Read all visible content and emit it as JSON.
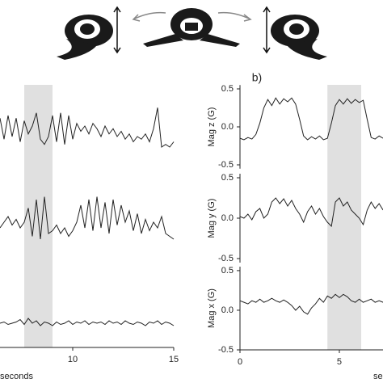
{
  "panel_label": "b)",
  "chart_data": [
    {
      "type": "line",
      "xlim": [
        6.4,
        15
      ],
      "ylim": [
        -1,
        1
      ],
      "highlight": [
        7.6,
        9.0
      ],
      "x": [
        6.4,
        6.6,
        6.8,
        7.0,
        7.2,
        7.4,
        7.6,
        7.8,
        8.0,
        8.2,
        8.4,
        8.6,
        8.8,
        9.0,
        9.2,
        9.4,
        9.6,
        9.8,
        10.0,
        10.2,
        10.4,
        10.6,
        10.8,
        11.0,
        11.2,
        11.4,
        11.6,
        11.8,
        12.0,
        12.2,
        12.4,
        12.6,
        12.8,
        13.0,
        13.2,
        13.4,
        13.6,
        13.8,
        14.0,
        14.2,
        14.4,
        14.6,
        14.8,
        15.0
      ],
      "series": [
        {
          "color": "#222222",
          "values": [
            0.5,
            -0.3,
            0.6,
            -0.2,
            0.5,
            -0.4,
            0.4,
            -0.1,
            0.2,
            0.7,
            -0.3,
            -0.5,
            -0.2,
            0.6,
            -0.4,
            0.7,
            -0.5,
            0.6,
            -0.3,
            0.3,
            0.0,
            0.2,
            -0.1,
            0.3,
            0.1,
            -0.2,
            0.2,
            -0.1,
            0.1,
            -0.2,
            0.0,
            -0.3,
            -0.1,
            -0.4,
            -0.2,
            -0.3,
            -0.1,
            -0.4,
            0.1,
            0.9,
            -0.6,
            -0.5,
            -0.6,
            -0.4
          ]
        }
      ]
    },
    {
      "type": "line",
      "xlim": [
        6.4,
        15
      ],
      "ylim": [
        -1,
        1
      ],
      "x": [
        6.4,
        6.6,
        6.8,
        7.0,
        7.2,
        7.4,
        7.6,
        7.8,
        8.0,
        8.2,
        8.4,
        8.6,
        8.8,
        9.0,
        9.2,
        9.4,
        9.6,
        9.8,
        10.0,
        10.2,
        10.4,
        10.6,
        10.8,
        11.0,
        11.2,
        11.4,
        11.6,
        11.8,
        12.0,
        12.2,
        12.4,
        12.6,
        12.8,
        13.0,
        13.2,
        13.4,
        13.6,
        13.8,
        14.0,
        14.2,
        14.4,
        14.6,
        14.8,
        15.0
      ],
      "series": [
        {
          "color": "#222222",
          "values": [
            -0.2,
            0.0,
            0.2,
            -0.1,
            0.1,
            -0.2,
            0.0,
            0.5,
            -0.5,
            0.8,
            -0.6,
            0.9,
            -0.4,
            -0.3,
            -0.1,
            -0.4,
            -0.2,
            -0.5,
            -0.3,
            0.0,
            0.6,
            -0.2,
            0.8,
            -0.3,
            0.9,
            -0.2,
            0.7,
            -0.4,
            0.8,
            -0.1,
            0.6,
            0.0,
            0.4,
            -0.3,
            0.3,
            -0.4,
            0.1,
            -0.3,
            0.0,
            -0.2,
            0.2,
            -0.4,
            -0.5,
            -0.6
          ]
        }
      ]
    },
    {
      "type": "line",
      "xlim": [
        6.4,
        15
      ],
      "ylim": [
        -2,
        2
      ],
      "xticks": [
        10,
        15
      ],
      "xlabel": "seconds",
      "x": [
        6.4,
        6.6,
        6.8,
        7.0,
        7.2,
        7.4,
        7.6,
        7.8,
        8.0,
        8.2,
        8.4,
        8.6,
        8.8,
        9.0,
        9.2,
        9.4,
        9.6,
        9.8,
        10.0,
        10.2,
        10.4,
        10.6,
        10.8,
        11.0,
        11.2,
        11.4,
        11.6,
        11.8,
        12.0,
        12.2,
        12.4,
        12.6,
        12.8,
        13.0,
        13.2,
        13.4,
        13.6,
        13.8,
        14.0,
        14.2,
        14.4,
        14.6,
        14.8,
        15.0
      ],
      "series": [
        {
          "color": "#222222",
          "values": [
            0.0,
            0.1,
            -0.1,
            0.0,
            0.1,
            0.3,
            -0.1,
            0.4,
            0.0,
            0.2,
            -0.2,
            0.1,
            0.0,
            -0.2,
            0.1,
            -0.1,
            0.0,
            0.2,
            -0.1,
            0.1,
            0.0,
            0.2,
            -0.1,
            0.1,
            0.0,
            0.1,
            -0.1,
            0.2,
            0.0,
            0.1,
            -0.1,
            0.2,
            0.0,
            -0.1,
            0.1,
            0.0,
            -0.2,
            0.1,
            0.0,
            0.2,
            -0.1,
            0.1,
            0.0,
            -0.2
          ]
        }
      ]
    },
    {
      "type": "line",
      "ylabel": "Mag z (G)",
      "xlim": [
        0,
        7.2
      ],
      "ylim": [
        -0.55,
        0.55
      ],
      "highlight": [
        4.4,
        6.1
      ],
      "yticks": [
        0.5,
        {
          "value": 0,
          "label": "0.0"
        },
        -0.5
      ],
      "x": [
        0,
        0.2,
        0.4,
        0.6,
        0.8,
        1.0,
        1.2,
        1.4,
        1.6,
        1.8,
        2.0,
        2.2,
        2.4,
        2.6,
        2.8,
        3.0,
        3.2,
        3.4,
        3.6,
        3.8,
        4.0,
        4.2,
        4.4,
        4.6,
        4.8,
        5.0,
        5.2,
        5.4,
        5.6,
        5.8,
        6.0,
        6.2,
        6.4,
        6.6,
        6.8,
        7.0,
        7.2
      ],
      "series": [
        {
          "color": "#222222",
          "values": [
            -0.15,
            -0.17,
            -0.14,
            -0.16,
            -0.1,
            0.05,
            0.25,
            0.36,
            0.28,
            0.38,
            0.3,
            0.37,
            0.33,
            0.38,
            0.3,
            0.1,
            -0.12,
            -0.17,
            -0.13,
            -0.16,
            -0.12,
            -0.17,
            -0.15,
            0.05,
            0.28,
            0.36,
            0.3,
            0.37,
            0.31,
            0.36,
            0.32,
            0.35,
            0.1,
            -0.14,
            -0.16,
            -0.12,
            -0.15
          ]
        }
      ]
    },
    {
      "type": "line",
      "ylabel": "Mag y (G)",
      "xlim": [
        0,
        7.2
      ],
      "ylim": [
        -0.55,
        0.55
      ],
      "yticks": [
        0.5,
        {
          "value": 0,
          "label": "0.0"
        },
        -0.5
      ],
      "x": [
        0,
        0.2,
        0.4,
        0.6,
        0.8,
        1.0,
        1.2,
        1.4,
        1.6,
        1.8,
        2.0,
        2.2,
        2.4,
        2.6,
        2.8,
        3.0,
        3.2,
        3.4,
        3.6,
        3.8,
        4.0,
        4.2,
        4.4,
        4.6,
        4.8,
        5.0,
        5.2,
        5.4,
        5.6,
        5.8,
        6.0,
        6.2,
        6.4,
        6.6,
        6.8,
        7.0,
        7.2
      ],
      "series": [
        {
          "color": "#222222",
          "values": [
            0.02,
            0.0,
            0.05,
            -0.02,
            0.08,
            0.12,
            0.0,
            0.05,
            0.2,
            0.25,
            0.18,
            0.24,
            0.15,
            0.22,
            0.12,
            0.05,
            -0.05,
            0.08,
            0.15,
            0.05,
            0.12,
            0.02,
            -0.05,
            -0.1,
            0.2,
            0.25,
            0.15,
            0.2,
            0.1,
            0.05,
            0.0,
            -0.08,
            0.1,
            0.2,
            0.12,
            0.18,
            0.1
          ]
        }
      ]
    },
    {
      "type": "line",
      "ylabel": "Mag x (G)",
      "xlim": [
        0,
        7.2
      ],
      "ylim": [
        -0.5,
        0.55
      ],
      "xticks": [
        0,
        5
      ],
      "xlabel": "seconds",
      "yticks": [
        0.5,
        {
          "value": 0,
          "label": "0.0"
        },
        -0.5
      ],
      "x": [
        0,
        0.2,
        0.4,
        0.6,
        0.8,
        1.0,
        1.2,
        1.4,
        1.6,
        1.8,
        2.0,
        2.2,
        2.4,
        2.6,
        2.8,
        3.0,
        3.2,
        3.4,
        3.6,
        3.8,
        4.0,
        4.2,
        4.4,
        4.6,
        4.8,
        5.0,
        5.2,
        5.4,
        5.6,
        5.8,
        6.0,
        6.2,
        6.4,
        6.6,
        6.8,
        7.0,
        7.2
      ],
      "series": [
        {
          "color": "#222222",
          "values": [
            0.12,
            0.1,
            0.08,
            0.12,
            0.1,
            0.14,
            0.1,
            0.12,
            0.15,
            0.12,
            0.1,
            0.13,
            0.1,
            0.06,
            0.0,
            0.05,
            -0.02,
            -0.05,
            0.03,
            0.08,
            0.15,
            0.1,
            0.18,
            0.15,
            0.2,
            0.16,
            0.2,
            0.17,
            0.12,
            0.1,
            0.14,
            0.1,
            0.12,
            0.14,
            0.1,
            0.12,
            0.1
          ]
        }
      ]
    }
  ]
}
